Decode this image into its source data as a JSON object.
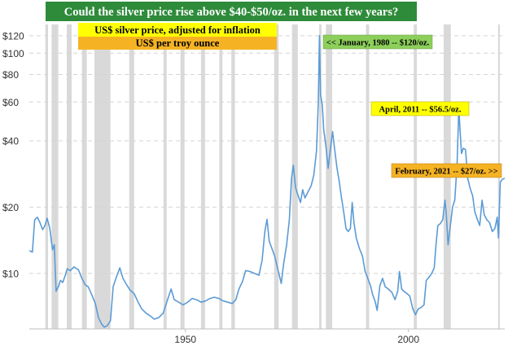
{
  "colors": {
    "title_bg": "#2e8b3a",
    "title_text": "#ffffff",
    "line": "#5b9bd5",
    "recession": "#d9d9d9",
    "grid": "#d4d4d4",
    "label_yellow": "#ffff00",
    "label_orange": "#f5b324",
    "label_green": "#8ccf5a"
  },
  "chart_data": {
    "type": "line",
    "title": "Could the silver price rise above $40-$50/oz. in the next few years?",
    "legend": [
      "US$ silver price, adjusted for inflation",
      "US$ per troy ounce"
    ],
    "y_scale": "log",
    "ylim": [
      5.6,
      135
    ],
    "xlim": [
      1915,
      2021.6
    ],
    "y_ticks": [
      {
        "value": 120,
        "label": "$120"
      },
      {
        "value": 100,
        "label": "$100"
      },
      {
        "value": 80,
        "label": "$80"
      },
      {
        "value": 60,
        "label": "$60"
      },
      {
        "value": 40,
        "label": "$40"
      },
      {
        "value": 20,
        "label": "$20"
      },
      {
        "value": 10,
        "label": "$10"
      }
    ],
    "x_ticks": [
      {
        "value": 1950,
        "label": "1950"
      },
      {
        "value": 2000,
        "label": "2000"
      }
    ],
    "grid": true,
    "recessions": [
      [
        1918.6,
        1919.2
      ],
      [
        1920.0,
        1921.5
      ],
      [
        1923.4,
        1924.5
      ],
      [
        1926.8,
        1927.9
      ],
      [
        1929.6,
        1933.2
      ],
      [
        1937.4,
        1938.5
      ],
      [
        1945.1,
        1945.8
      ],
      [
        1948.9,
        1949.8
      ],
      [
        1953.5,
        1954.4
      ],
      [
        1957.6,
        1958.3
      ],
      [
        1960.3,
        1961.1
      ],
      [
        1969.9,
        1970.9
      ],
      [
        1973.9,
        1975.2
      ],
      [
        1980.0,
        1980.5
      ],
      [
        1981.5,
        1982.9
      ],
      [
        1990.5,
        1991.2
      ],
      [
        2001.2,
        2001.9
      ],
      [
        2007.9,
        2009.5
      ],
      [
        2020.1,
        2020.5
      ]
    ],
    "series": [
      {
        "points": [
          [
            1915.0,
            12.7
          ],
          [
            1915.7,
            12.5
          ],
          [
            1916.2,
            17.5
          ],
          [
            1916.8,
            18.0
          ],
          [
            1917.4,
            17.0
          ],
          [
            1918.0,
            15.8
          ],
          [
            1918.5,
            16.5
          ],
          [
            1919.0,
            17.8
          ],
          [
            1919.6,
            16.0
          ],
          [
            1920.2,
            12.8
          ],
          [
            1920.6,
            13.5
          ],
          [
            1921.0,
            8.3
          ],
          [
            1921.6,
            8.8
          ],
          [
            1922.0,
            9.3
          ],
          [
            1922.5,
            9.1
          ],
          [
            1923.0,
            9.7
          ],
          [
            1923.5,
            10.5
          ],
          [
            1924.2,
            10.3
          ],
          [
            1925.0,
            10.7
          ],
          [
            1926.0,
            10.4
          ],
          [
            1926.8,
            9.5
          ],
          [
            1927.5,
            8.9
          ],
          [
            1928.2,
            8.7
          ],
          [
            1929.0,
            8.0
          ],
          [
            1929.8,
            7.3
          ],
          [
            1930.5,
            6.3
          ],
          [
            1931.2,
            5.9
          ],
          [
            1931.8,
            5.7
          ],
          [
            1932.5,
            5.8
          ],
          [
            1933.2,
            6.1
          ],
          [
            1933.8,
            8.7
          ],
          [
            1934.5,
            9.6
          ],
          [
            1935.3,
            10.6
          ],
          [
            1936.0,
            9.5
          ],
          [
            1936.8,
            8.9
          ],
          [
            1937.6,
            8.4
          ],
          [
            1938.5,
            8.1
          ],
          [
            1939.4,
            7.4
          ],
          [
            1940.2,
            6.9
          ],
          [
            1941.2,
            6.6
          ],
          [
            1942.2,
            6.4
          ],
          [
            1943.0,
            6.2
          ],
          [
            1944.0,
            6.3
          ],
          [
            1945.0,
            6.6
          ],
          [
            1946.0,
            7.6
          ],
          [
            1946.8,
            8.5
          ],
          [
            1947.5,
            7.6
          ],
          [
            1948.5,
            7.4
          ],
          [
            1949.5,
            7.2
          ],
          [
            1950.5,
            7.4
          ],
          [
            1951.5,
            7.7
          ],
          [
            1952.5,
            7.6
          ],
          [
            1953.5,
            7.4
          ],
          [
            1954.5,
            7.5
          ],
          [
            1955.5,
            7.7
          ],
          [
            1956.5,
            7.8
          ],
          [
            1957.5,
            7.7
          ],
          [
            1958.5,
            7.5
          ],
          [
            1959.5,
            7.4
          ],
          [
            1960.5,
            7.3
          ],
          [
            1961.3,
            7.6
          ],
          [
            1962.0,
            8.5
          ],
          [
            1962.8,
            9.2
          ],
          [
            1963.5,
            10.3
          ],
          [
            1964.5,
            10.2
          ],
          [
            1965.5,
            10.0
          ],
          [
            1966.5,
            9.8
          ],
          [
            1967.2,
            11.5
          ],
          [
            1967.8,
            15.5
          ],
          [
            1968.3,
            17.6
          ],
          [
            1968.8,
            14.0
          ],
          [
            1969.5,
            12.8
          ],
          [
            1970.0,
            12.0
          ],
          [
            1970.8,
            10.3
          ],
          [
            1971.5,
            9.0
          ],
          [
            1972.0,
            11.0
          ],
          [
            1972.7,
            13.5
          ],
          [
            1973.3,
            17.5
          ],
          [
            1973.8,
            27.0
          ],
          [
            1974.2,
            31.0
          ],
          [
            1974.7,
            24.5
          ],
          [
            1975.3,
            22.5
          ],
          [
            1975.8,
            21.0
          ],
          [
            1976.3,
            24.0
          ],
          [
            1976.8,
            22.0
          ],
          [
            1977.5,
            23.5
          ],
          [
            1978.2,
            25.0
          ],
          [
            1978.8,
            28.0
          ],
          [
            1979.4,
            36.0
          ],
          [
            1979.8,
            60.0
          ],
          [
            1980.05,
            120.0
          ],
          [
            1980.3,
            65.0
          ],
          [
            1980.7,
            58.0
          ],
          [
            1981.0,
            45.0
          ],
          [
            1981.5,
            38.0
          ],
          [
            1982.0,
            30.0
          ],
          [
            1982.6,
            38.0
          ],
          [
            1983.0,
            44.0
          ],
          [
            1983.5,
            36.0
          ],
          [
            1984.0,
            30.0
          ],
          [
            1984.5,
            26.0
          ],
          [
            1985.0,
            22.0
          ],
          [
            1985.5,
            19.0
          ],
          [
            1986.0,
            16.0
          ],
          [
            1986.5,
            15.5
          ],
          [
            1987.0,
            16.0
          ],
          [
            1987.4,
            21.0
          ],
          [
            1987.8,
            17.0
          ],
          [
            1988.3,
            14.5
          ],
          [
            1989.0,
            13.0
          ],
          [
            1989.7,
            12.0
          ],
          [
            1990.3,
            10.2
          ],
          [
            1990.8,
            9.6
          ],
          [
            1991.5,
            8.8
          ],
          [
            1992.0,
            8.0
          ],
          [
            1992.5,
            7.5
          ],
          [
            1993.0,
            6.8
          ],
          [
            1993.6,
            8.8
          ],
          [
            1994.2,
            9.5
          ],
          [
            1994.8,
            8.7
          ],
          [
            1995.5,
            8.5
          ],
          [
            1996.3,
            8.2
          ],
          [
            1997.0,
            7.6
          ],
          [
            1997.6,
            8.3
          ],
          [
            1998.0,
            10.2
          ],
          [
            1998.5,
            8.5
          ],
          [
            1999.0,
            8.3
          ],
          [
            1999.7,
            8.1
          ],
          [
            2000.3,
            7.9
          ],
          [
            2001.0,
            6.9
          ],
          [
            2001.6,
            6.5
          ],
          [
            2002.2,
            6.9
          ],
          [
            2002.8,
            7.0
          ],
          [
            2003.5,
            7.2
          ],
          [
            2004.0,
            9.3
          ],
          [
            2004.6,
            9.6
          ],
          [
            2005.2,
            10.0
          ],
          [
            2005.8,
            10.6
          ],
          [
            2006.2,
            13.5
          ],
          [
            2006.6,
            16.5
          ],
          [
            2007.1,
            16.8
          ],
          [
            2007.7,
            17.5
          ],
          [
            2008.2,
            21.5
          ],
          [
            2008.5,
            18.5
          ],
          [
            2008.9,
            13.5
          ],
          [
            2009.4,
            16.5
          ],
          [
            2009.9,
            20.0
          ],
          [
            2010.4,
            21.5
          ],
          [
            2010.9,
            31.0
          ],
          [
            2011.3,
            56.5
          ],
          [
            2011.6,
            44.0
          ],
          [
            2011.9,
            35.0
          ],
          [
            2012.3,
            37.0
          ],
          [
            2012.8,
            36.5
          ],
          [
            2013.3,
            27.0
          ],
          [
            2013.8,
            24.5
          ],
          [
            2014.4,
            22.5
          ],
          [
            2014.9,
            19.0
          ],
          [
            2015.5,
            17.5
          ],
          [
            2016.0,
            16.5
          ],
          [
            2016.5,
            21.5
          ],
          [
            2017.0,
            18.5
          ],
          [
            2017.6,
            17.5
          ],
          [
            2018.2,
            17.0
          ],
          [
            2018.8,
            15.5
          ],
          [
            2019.4,
            16.0
          ],
          [
            2019.9,
            18.0
          ],
          [
            2020.2,
            14.5
          ],
          [
            2020.6,
            26.0
          ],
          [
            2021.1,
            26.8
          ],
          [
            2021.6,
            27.0
          ]
        ]
      }
    ],
    "annotations": [
      {
        "text": "<< January, 1980 -- $120/oz.",
        "color_key": "label_green"
      },
      {
        "text": "April, 2011 -- $56.5/oz.",
        "color_key": "label_yellow"
      },
      {
        "text": "February, 2021 -- $27/oz. >>",
        "color_key": "label_orange"
      }
    ]
  }
}
